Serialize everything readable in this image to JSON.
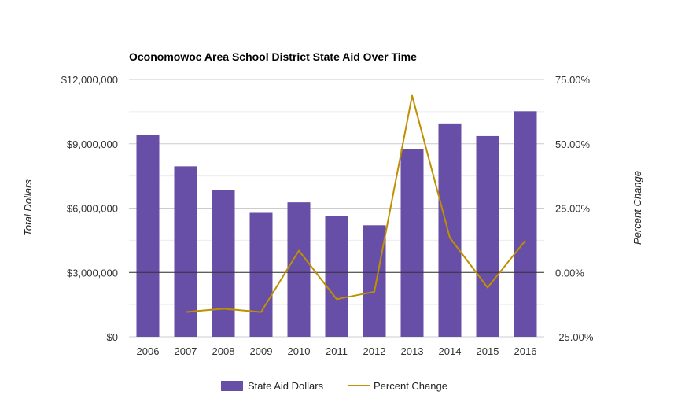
{
  "chart_data": {
    "type": "bar",
    "title": "Oconomowoc Area School District State Aid Over Time",
    "categories": [
      "2006",
      "2007",
      "2008",
      "2009",
      "2010",
      "2011",
      "2012",
      "2013",
      "2014",
      "2015",
      "2016"
    ],
    "series": [
      {
        "name": "State Aid Dollars",
        "type": "bar",
        "axis": "left",
        "color": "#674ea7",
        "values": [
          9400000,
          7950000,
          6830000,
          5780000,
          6270000,
          5620000,
          5200000,
          8770000,
          9950000,
          9360000,
          10520000
        ]
      },
      {
        "name": "Percent Change",
        "type": "line",
        "axis": "right",
        "color": "#bf9000",
        "values": [
          null,
          -15.4,
          -14.1,
          -15.4,
          8.5,
          -10.4,
          -7.5,
          68.7,
          13.5,
          -5.9,
          12.4
        ]
      }
    ],
    "ylabel_left": "Total Dollars",
    "ylabel_right": "Percent Change",
    "ylim_left": [
      0,
      12000000
    ],
    "ylim_right": [
      -25,
      75
    ],
    "yticks_left": [
      "$0",
      "$3,000,000",
      "$6,000,000",
      "$9,000,000",
      "$12,000,000"
    ],
    "yticks_right": [
      "-25.00%",
      "0.00%",
      "25.00%",
      "50.00%",
      "75.00%"
    ],
    "grid": true,
    "legend_position": "bottom"
  }
}
